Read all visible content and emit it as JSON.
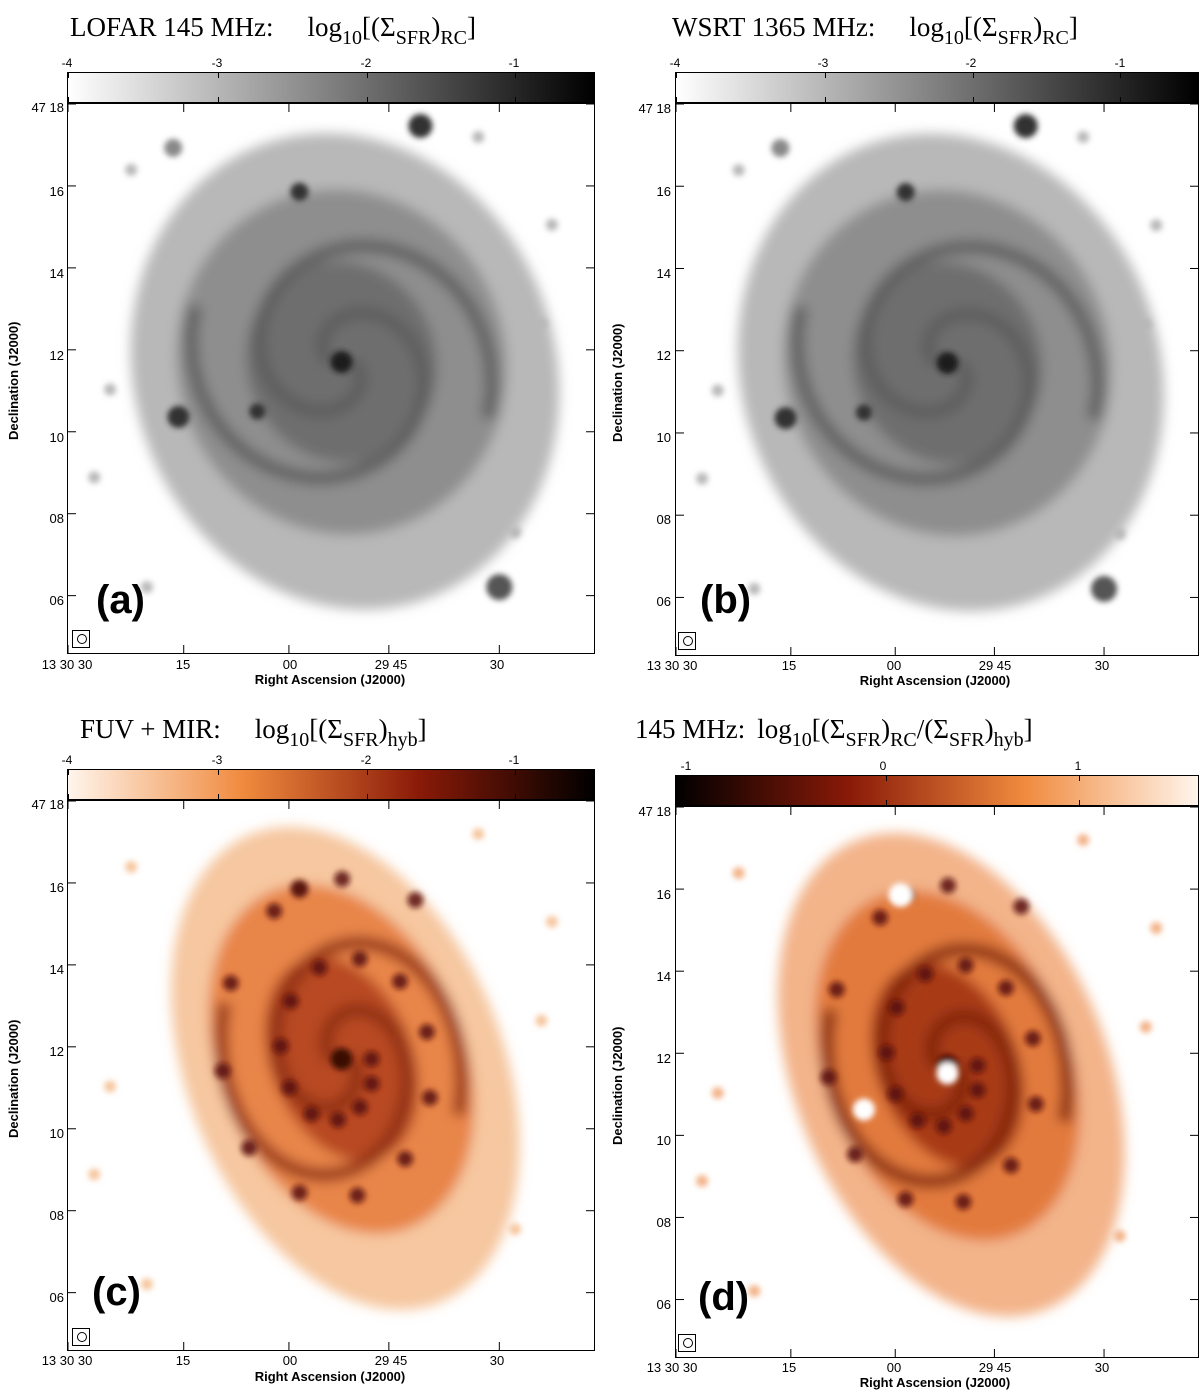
{
  "panels": [
    {
      "id": "a",
      "title_label": "LOFAR 145 MHz:",
      "title_formula": "log",
      "title_formula_sub": "10",
      "title_formula_rest": "[(Σ",
      "title_formula_sub2": "SFR",
      "title_formula_rest2": ")",
      "title_formula_sub3": "RC",
      "title_formula_end": "]",
      "colorbar_ticks": [
        "-4",
        "-3",
        "-2",
        "-1"
      ],
      "colorbar_colors": [
        "#ffffff",
        "#000000"
      ],
      "panel_label": "(a)",
      "map_style": "gray",
      "dec_ticks": [
        "47 18",
        "16",
        "14",
        "12",
        "10",
        "08",
        "06"
      ],
      "ra_ticks": [
        "13 30 30",
        "15",
        "00",
        "29 45",
        "30"
      ],
      "xlabel": "Right Ascension (J2000)",
      "ylabel": "Declination (J2000)"
    },
    {
      "id": "b",
      "title_label": "WSRT 1365 MHz:",
      "title_formula": "log",
      "title_formula_sub": "10",
      "title_formula_rest": "[(Σ",
      "title_formula_sub2": "SFR",
      "title_formula_rest2": ")",
      "title_formula_sub3": "RC",
      "title_formula_end": "]",
      "colorbar_ticks": [
        "-4",
        "-3",
        "-2",
        "-1"
      ],
      "colorbar_colors": [
        "#ffffff",
        "#000000"
      ],
      "panel_label": "(b)",
      "map_style": "gray",
      "dec_ticks": [
        "47 18",
        "16",
        "14",
        "12",
        "10",
        "08",
        "06"
      ],
      "ra_ticks": [
        "13 30 30",
        "15",
        "00",
        "29 45",
        "30"
      ],
      "xlabel": "Right Ascension (J2000)",
      "ylabel": "Declination (J2000)"
    },
    {
      "id": "c",
      "title_label": "FUV + MIR:",
      "title_formula": "log",
      "title_formula_sub": "10",
      "title_formula_rest": "[(Σ",
      "title_formula_sub2": "SFR",
      "title_formula_rest2": ")",
      "title_formula_sub3": "hyb",
      "title_formula_end": "]",
      "colorbar_ticks": [
        "-4",
        "-3",
        "-2",
        "-1"
      ],
      "colorbar_colors": [
        "#fff5ec",
        "#f08a3e",
        "#8a1a08",
        "#000000"
      ],
      "panel_label": "(c)",
      "map_style": "heat",
      "dec_ticks": [
        "47 18",
        "16",
        "14",
        "12",
        "10",
        "08",
        "06"
      ],
      "ra_ticks": [
        "13 30 30",
        "15",
        "00",
        "29 45",
        "30"
      ],
      "xlabel": "Right Ascension (J2000)",
      "ylabel": "Declination (J2000)"
    },
    {
      "id": "d",
      "title_label": "145 MHz:",
      "title_formula": "log",
      "title_formula_sub": "10",
      "title_formula_rest": "[(Σ",
      "title_formula_sub2": "SFR",
      "title_formula_rest2": ")",
      "title_formula_sub3": "RC",
      "title_formula_end": "/(Σ",
      "title_formula_sub4": "SFR",
      "title_formula_end2": ")",
      "title_formula_sub5": "hyb",
      "title_formula_end3": "]",
      "colorbar_ticks": [
        "-1",
        "0",
        "1"
      ],
      "colorbar_colors": [
        "#000000",
        "#8a1a08",
        "#f08a3e",
        "#fff5ec"
      ],
      "panel_label": "(d)",
      "map_style": "ratio",
      "dec_ticks": [
        "47 18",
        "16",
        "14",
        "12",
        "10",
        "08",
        "06"
      ],
      "ra_ticks": [
        "13 30 30",
        "15",
        "00",
        "29 45",
        "30"
      ],
      "xlabel": "Right Ascension (J2000)",
      "ylabel": "Declination (J2000)"
    }
  ]
}
